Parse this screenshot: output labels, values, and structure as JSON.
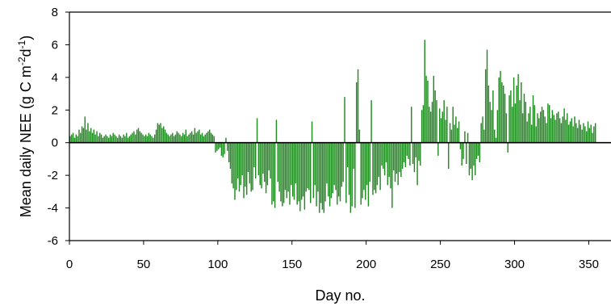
{
  "chart_data": {
    "type": "bar",
    "title": "",
    "xlabel": "Day no.",
    "ylabel_main": "Mean daily NEE (g C m",
    "ylabel_sup1": "-2",
    "ylabel_mid": "d",
    "ylabel_sup2": "-1",
    "ylabel_end": ")",
    "xlim": [
      0,
      365
    ],
    "ylim": [
      -6,
      8
    ],
    "xticks": [
      0,
      50,
      100,
      150,
      200,
      250,
      300,
      350
    ],
    "yticks": [
      -6,
      -4,
      -2,
      0,
      2,
      4,
      6,
      8
    ],
    "xtick_labels": [
      "0",
      "50",
      "100",
      "150",
      "200",
      "250",
      "300",
      "350"
    ],
    "ytick_labels": [
      "-6",
      "-4",
      "-2",
      "0",
      "2",
      "4",
      "6",
      "8"
    ],
    "grid": false,
    "colors": {
      "bars": "#1f8a1f",
      "axis": "#000000"
    },
    "series": [
      {
        "x_start": 1,
        "values": [
          0.4,
          0.5,
          0.6,
          0.3,
          0.5,
          0.4,
          0.8,
          0.6,
          1.0,
          0.9,
          1.6,
          0.8,
          1.2,
          0.7,
          0.9,
          0.6,
          0.8,
          0.5,
          0.7,
          0.4,
          0.6,
          0.5,
          0.3,
          0.4,
          0.5,
          0.4,
          0.3,
          0.5,
          0.4,
          0.6,
          0.5,
          0.4,
          0.3,
          0.5,
          0.4,
          0.3,
          0.5,
          0.4,
          0.6,
          0.3,
          0.4,
          0.5,
          0.6,
          0.7,
          0.5,
          0.8,
          0.9,
          0.7,
          0.6,
          0.5,
          0.4,
          0.5,
          0.4,
          0.6,
          0.5,
          0.4,
          0.3,
          0.5,
          0.8,
          1.2,
          1.1,
          1.2,
          0.9,
          1.0,
          0.8,
          0.6,
          0.5,
          0.4,
          0.5,
          0.6,
          0.4,
          0.5,
          0.7,
          0.6,
          0.5,
          0.4,
          0.6,
          0.5,
          0.8,
          0.4,
          0.5,
          0.6,
          0.7,
          0.5,
          0.9,
          0.6,
          0.7,
          0.8,
          0.5,
          0.6,
          0.4,
          0.5,
          0.6,
          0.7,
          0.8,
          0.6,
          0.5,
          0.4,
          -0.6,
          -0.5,
          -0.4,
          -0.3,
          -0.8,
          -0.9,
          -0.7,
          0.3,
          -0.5,
          -1.2,
          -1.6,
          -2.5,
          -2.8,
          -3.5,
          -2.9,
          -2.2,
          -3.0,
          -2.6,
          -2.0,
          -3.4,
          -2.7,
          -3.2,
          -1.8,
          -2.5,
          -3.0,
          -2.9,
          -1.5,
          -2.2,
          1.5,
          -2.0,
          -2.6,
          -2.8,
          -1.9,
          -2.4,
          -3.1,
          -2.6,
          -1.7,
          -2.2,
          -3.8,
          -3.6,
          -4.0,
          1.4,
          -2.4,
          -3.0,
          -3.6,
          -3.9,
          -3.7,
          -2.9,
          -3.4,
          -3.0,
          -3.8,
          -2.6,
          -3.3,
          -3.5,
          -2.5,
          -3.8,
          -3.6,
          -4.2,
          -3.5,
          -3.3,
          -4.1,
          -3.0,
          -2.8,
          -2.9,
          -3.7,
          1.3,
          -3.4,
          -2.6,
          -3.9,
          -3.0,
          -4.3,
          -3.7,
          -4.1,
          -4.3,
          -3.6,
          -2.5,
          -3.3,
          -3.9,
          -3.4,
          -3.1,
          -2.6,
          -2.9,
          -3.8,
          -3.3,
          -3.6,
          -2.7,
          -2.4,
          2.8,
          -3.7,
          -1.5,
          -3.2,
          -4.3,
          -3.9,
          -1.6,
          -4.0,
          3.7,
          4.5,
          0.8,
          -3.8,
          -3.4,
          -2.9,
          -3.5,
          -2.6,
          -3.9,
          -2.4,
          2.6,
          -3.2,
          -2.9,
          -3.1,
          -2.6,
          -2.1,
          -2.9,
          -1.4,
          -1.6,
          -2.0,
          -1.2,
          -2.6,
          -2.1,
          -2.8,
          -4.0,
          -1.7,
          -2.4,
          -1.9,
          -2.6,
          -1.8,
          -2.1,
          -1.6,
          -1.2,
          -1.5,
          -0.8,
          -1.0,
          -1.4,
          2.2,
          -1.3,
          -1.8,
          -0.9,
          -2.6,
          -1.1,
          -1.4,
          2.0,
          2.3,
          6.3,
          4.1,
          3.8,
          2.2,
          1.9,
          2.5,
          4.1,
          3.2,
          2.6,
          -0.8,
          2.1,
          1.5,
          1.9,
          2.6,
          1.4,
          2.2,
          -1.6,
          1.2,
          0.8,
          2.2,
          1.1,
          1.6,
          0.9,
          1.3,
          -0.4,
          -1.4,
          -1.0,
          0.7,
          -1.3,
          0.6,
          -2.0,
          -1.6,
          -2.3,
          -1.4,
          -2.0,
          -1.0,
          -0.8,
          -1.2,
          1.2,
          1.6,
          0.8,
          4.5,
          5.7,
          3.5,
          2.5,
          2.0,
          3.2,
          0.8,
          0.3,
          2.0,
          4.0,
          4.4,
          3.7,
          3.5,
          3.0,
          1.8,
          -0.6,
          2.9,
          3.2,
          2.2,
          4.0,
          2.4,
          3.5,
          4.2,
          2.6,
          3.7,
          1.8,
          3.0,
          2.5,
          1.3,
          1.8,
          2.2,
          1.1,
          2.9,
          2.3,
          1.0,
          1.8,
          1.5,
          1.9,
          2.2,
          2.0,
          1.6,
          1.2,
          2.4,
          2.3,
          1.5,
          2.0,
          1.7,
          1.4,
          1.8,
          1.9,
          1.5,
          1.2,
          1.6,
          2.1,
          1.4,
          1.8,
          1.1,
          1.3,
          1.5,
          1.0,
          1.6,
          1.2,
          0.9,
          1.4,
          1.1,
          0.8,
          1.2,
          1.0,
          0.7,
          1.3,
          0.9,
          1.1,
          0.6,
          1.0,
          1.2
        ]
      }
    ]
  }
}
